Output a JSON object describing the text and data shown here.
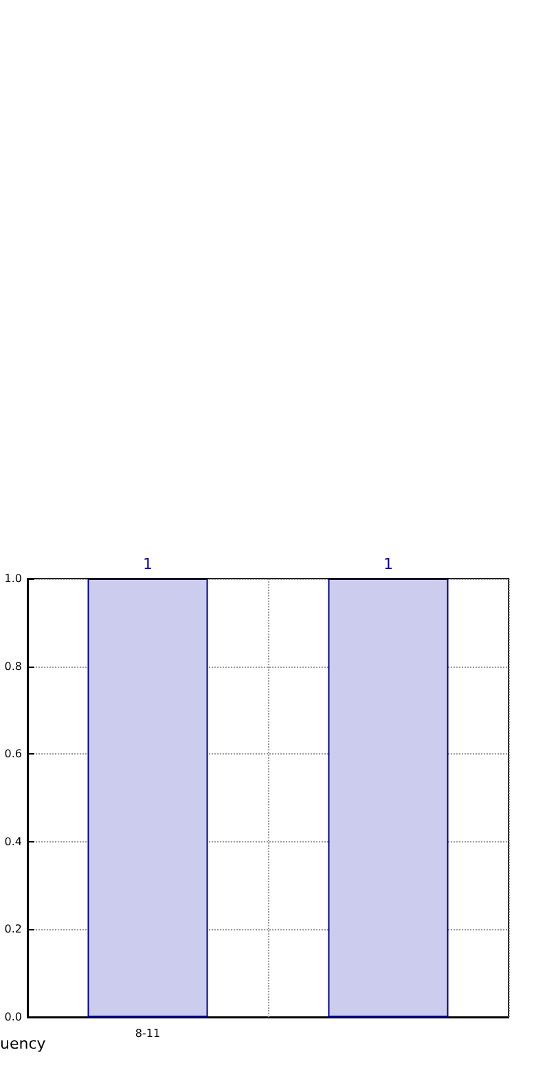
{
  "chart_data": {
    "type": "bar",
    "categories": [
      "8-11",
      null
    ],
    "values": [
      1,
      1
    ],
    "color": "#ccccee",
    "xlabel": "uency",
    "ylim": [
      0,
      1
    ],
    "yticks": [
      {
        "value": 0,
        "label": "0.0"
      },
      {
        "value": 0.2,
        "label": "0.2"
      },
      {
        "value": 0.4,
        "label": "0.4"
      },
      {
        "value": 0.6,
        "label": "0.6"
      },
      {
        "value": 0.8,
        "label": "0.8"
      },
      {
        "value": 1,
        "label": "1.0"
      }
    ],
    "grid": true,
    "data_labels": true
  }
}
